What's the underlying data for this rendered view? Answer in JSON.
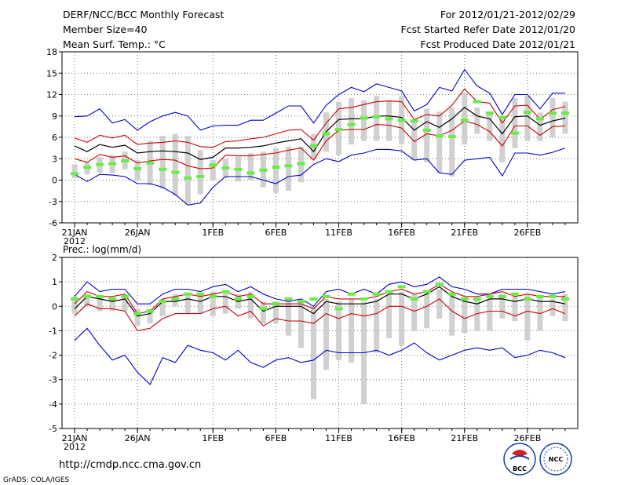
{
  "header": {
    "title_left": "DERF/NCC/BCC Monthly Forecast",
    "member_size": "Member Size=40",
    "variable": "Mean Surf. Temp.: °C",
    "period": "For 2012/01/21-2012/02/29",
    "refer_date": "Fcst Started Refer Date 2012/01/20",
    "produced_date": "Fcst Produced Date 2012/01/21"
  },
  "footer": {
    "url": "http://cmdp.ncc.cma.gov.cn",
    "credit": "GrADS: COLA/IGES",
    "logo_bcc": "BCC",
    "logo_ncc": "NCC"
  },
  "colors": {
    "ensemble_mean": "#000000",
    "spread": "#cc0000",
    "extremes": "#0000cc",
    "observed_marker": "#66ee44",
    "box": "#d0d0d0"
  },
  "chart_data": [
    {
      "type": "line",
      "title": "Mean Surf. Temp.: °C",
      "ylim": [
        -6,
        18
      ],
      "yticks": [
        -6,
        -3,
        0,
        3,
        6,
        9,
        12,
        15,
        18
      ],
      "x_tick_labels": [
        {
          "day": 1,
          "label": "21JAN"
        },
        {
          "day": 6,
          "label": "26JAN"
        },
        {
          "day": 12,
          "label": "1FEB"
        },
        {
          "day": 17,
          "label": "6FEB"
        },
        {
          "day": 22,
          "label": "11FEB"
        },
        {
          "day": 27,
          "label": "16FEB"
        },
        {
          "day": 32,
          "label": "21FEB"
        },
        {
          "day": 37,
          "label": "26FEB"
        }
      ],
      "year_label": "2012",
      "grid": true,
      "days": 40,
      "series": [
        {
          "name": "max",
          "values": [
            8.9,
            9.0,
            10.0,
            8.0,
            8.5,
            7.0,
            8.2,
            9.0,
            9.5,
            9.0,
            7.0,
            7.6,
            7.7,
            7.7,
            8.4,
            8.4,
            9.4,
            10.4,
            10.4,
            8.0,
            10.5,
            12.0,
            13.0,
            12.4,
            13.5,
            13.0,
            12.5,
            9.7,
            10.6,
            13.0,
            12.5,
            15.5,
            13.2,
            12.2,
            9.2,
            12.0,
            12.0,
            10.0,
            12.2,
            12.2
          ]
        },
        {
          "name": "upper",
          "values": [
            5.9,
            5.3,
            6.3,
            5.9,
            6.3,
            5.0,
            5.2,
            5.3,
            5.5,
            5.3,
            4.7,
            4.6,
            5.4,
            5.5,
            5.8,
            6.0,
            6.5,
            7.0,
            7.1,
            5.6,
            8.0,
            10.0,
            10.2,
            10.6,
            11.0,
            11.1,
            11.0,
            8.5,
            9.2,
            9.0,
            10.5,
            12.8,
            11.0,
            10.8,
            8.0,
            10.4,
            10.5,
            8.5,
            9.9,
            10.3
          ]
        },
        {
          "name": "mean",
          "values": [
            4.8,
            4.0,
            5.0,
            4.6,
            4.9,
            3.8,
            4.0,
            4.1,
            4.0,
            3.8,
            2.9,
            3.2,
            4.5,
            4.5,
            4.6,
            4.8,
            5.2,
            5.5,
            5.8,
            4.0,
            6.8,
            8.5,
            8.6,
            8.6,
            9.0,
            9.0,
            8.8,
            7.0,
            8.2,
            7.4,
            8.6,
            10.2,
            9.0,
            8.6,
            6.5,
            8.9,
            9.0,
            7.7,
            8.3,
            8.7
          ]
        },
        {
          "name": "lower",
          "values": [
            3.0,
            2.5,
            3.6,
            3.2,
            3.4,
            2.4,
            2.7,
            2.9,
            2.8,
            2.0,
            1.6,
            1.7,
            3.5,
            3.4,
            3.4,
            3.6,
            3.8,
            4.2,
            4.5,
            2.8,
            5.5,
            7.0,
            7.1,
            7.1,
            7.8,
            7.7,
            7.3,
            5.4,
            6.5,
            6.2,
            7.0,
            8.3,
            7.8,
            6.8,
            4.8,
            7.6,
            7.6,
            6.3,
            7.5,
            7.6
          ]
        },
        {
          "name": "min",
          "values": [
            0.8,
            -0.2,
            0.8,
            0.7,
            0.5,
            -0.5,
            -0.5,
            -1.0,
            -2.0,
            -3.5,
            -3.2,
            -1.0,
            0.5,
            0.5,
            0.5,
            0.0,
            -0.5,
            0.5,
            0.7,
            2.2,
            3.0,
            2.6,
            3.5,
            3.8,
            4.3,
            4.3,
            4.1,
            2.8,
            3.0,
            1.0,
            0.8,
            2.8,
            3.0,
            3.2,
            0.6,
            3.8,
            3.8,
            3.5,
            3.9,
            4.5
          ]
        },
        {
          "name": "observed",
          "values": [
            0.9,
            1.8,
            2.2,
            2.3,
            2.7,
            1.6,
            2.4,
            1.5,
            1.1,
            0.3,
            0.5,
            2.1,
            1.7,
            1.5,
            1.0,
            1.4,
            1.8,
            2.0,
            2.3,
            4.8,
            6.5,
            7.1,
            7.8,
            8.7,
            8.9,
            8.6,
            8.4,
            8.3,
            7.0,
            6.2,
            6.1,
            8.4,
            11.0,
            9.4,
            8.8,
            6.6,
            9.5,
            8.6,
            9.4,
            9.4
          ]
        },
        {
          "name": "box_top",
          "values": [
            2.2,
            2.5,
            3.2,
            3.5,
            4.0,
            2.8,
            5.5,
            6.2,
            6.5,
            6.2,
            4.2,
            2.8,
            3.0,
            3.3,
            3.8,
            4.0,
            4.5,
            4.7,
            4.7,
            6.5,
            9.5,
            11.0,
            11.5,
            11.2,
            11.8,
            11.2,
            11.8,
            8.5,
            10.0,
            9.6,
            10.2,
            12.3,
            10.2,
            9.6,
            8.8,
            11.5,
            11.8,
            9.5,
            11.5,
            11.0
          ]
        },
        {
          "name": "box_bottom",
          "values": [
            0.3,
            0.8,
            1.0,
            1.0,
            1.5,
            0.0,
            -0.7,
            -1.2,
            -2.2,
            -3.3,
            -2.0,
            0.0,
            0.3,
            -0.2,
            0.0,
            -1.0,
            -1.8,
            -1.5,
            -0.3,
            3.0,
            4.0,
            3.5,
            5.0,
            5.5,
            5.5,
            5.5,
            5.0,
            2.8,
            2.5,
            1.0,
            0.5,
            5.0,
            6.5,
            5.5,
            2.5,
            4.5,
            5.5,
            5.5,
            6.0,
            6.5
          ]
        }
      ]
    },
    {
      "type": "line",
      "title": "Prec.: log(mm/d)",
      "ylim": [
        -5,
        2
      ],
      "yticks": [
        -5,
        -4,
        -3,
        -2,
        -1,
        0,
        1,
        2
      ],
      "x_tick_labels": [
        {
          "day": 1,
          "label": "21JAN"
        },
        {
          "day": 6,
          "label": "26JAN"
        },
        {
          "day": 12,
          "label": "1FEB"
        },
        {
          "day": 17,
          "label": "6FEB"
        },
        {
          "day": 22,
          "label": "11FEB"
        },
        {
          "day": 27,
          "label": "16FEB"
        },
        {
          "day": 32,
          "label": "21FEB"
        },
        {
          "day": 37,
          "label": "26FEB"
        }
      ],
      "year_label": "2012",
      "grid": true,
      "days": 40,
      "series": [
        {
          "name": "max",
          "values": [
            0.4,
            1.0,
            0.6,
            0.7,
            0.7,
            0.1,
            0.1,
            0.5,
            0.7,
            0.7,
            0.6,
            0.8,
            0.9,
            0.6,
            0.8,
            0.5,
            0.3,
            0.2,
            0.3,
            0.0,
            0.6,
            0.7,
            0.5,
            0.7,
            0.5,
            0.9,
            1.0,
            0.8,
            0.9,
            1.2,
            0.8,
            0.7,
            0.5,
            0.5,
            0.7,
            0.7,
            0.7,
            0.6,
            0.5,
            0.6
          ]
        },
        {
          "name": "upper",
          "values": [
            0.1,
            0.6,
            0.4,
            0.4,
            0.5,
            -0.3,
            -0.2,
            0.3,
            0.4,
            0.5,
            0.4,
            0.5,
            0.6,
            0.4,
            0.5,
            0.1,
            0.1,
            0.1,
            0.1,
            -0.1,
            0.4,
            0.3,
            0.3,
            0.3,
            0.4,
            0.6,
            0.7,
            0.5,
            0.6,
            0.9,
            0.6,
            0.4,
            0.4,
            0.5,
            0.6,
            0.4,
            0.5,
            0.4,
            0.4,
            0.4
          ]
        },
        {
          "name": "mean",
          "values": [
            -0.1,
            0.4,
            0.3,
            0.2,
            0.3,
            -0.4,
            -0.3,
            0.2,
            0.2,
            0.3,
            0.2,
            0.4,
            0.4,
            0.2,
            0.3,
            -0.2,
            0.0,
            0.0,
            0.0,
            -0.3,
            0.2,
            0.1,
            0.1,
            0.1,
            0.2,
            0.5,
            0.5,
            0.3,
            0.5,
            0.8,
            0.4,
            0.2,
            0.1,
            0.3,
            0.3,
            0.2,
            0.3,
            0.2,
            0.2,
            0.1
          ]
        },
        {
          "name": "lower",
          "values": [
            -0.4,
            0.1,
            -0.1,
            -0.1,
            -0.2,
            -1.0,
            -0.9,
            -0.5,
            -0.3,
            -0.3,
            -0.3,
            -0.1,
            0.0,
            -0.4,
            -0.2,
            -0.8,
            -0.5,
            -0.6,
            -0.6,
            -0.7,
            -0.3,
            -0.5,
            -0.3,
            -0.4,
            -0.3,
            0.0,
            0.0,
            -0.2,
            0.0,
            0.3,
            -0.2,
            -0.5,
            -0.3,
            -0.2,
            -0.2,
            -0.4,
            -0.2,
            -0.3,
            -0.1,
            -0.3
          ]
        },
        {
          "name": "min",
          "values": [
            -1.4,
            -0.9,
            -1.6,
            -2.2,
            -2.0,
            -2.7,
            -3.2,
            -2.1,
            -2.3,
            -1.6,
            -1.8,
            -1.9,
            -2.2,
            -1.8,
            -2.3,
            -2.5,
            -2.2,
            -2.1,
            -2.3,
            -2.2,
            -1.8,
            -1.9,
            -1.9,
            -1.9,
            -1.8,
            -2.0,
            -1.8,
            -1.5,
            -1.9,
            -2.2,
            -2.0,
            -1.8,
            -1.7,
            -1.8,
            -1.7,
            -2.1,
            -2.0,
            -1.8,
            -1.9,
            -2.1
          ]
        },
        {
          "name": "observed",
          "values": [
            0.3,
            0.4,
            0.4,
            0.3,
            0.4,
            -0.3,
            -0.2,
            0.2,
            0.3,
            0.5,
            0.5,
            0.4,
            0.6,
            0.3,
            0.4,
            -0.1,
            0.1,
            0.3,
            0.2,
            0.3,
            0.4,
            -0.1,
            0.5,
            0.3,
            0.5,
            0.6,
            0.8,
            0.3,
            0.6,
            0.9,
            0.5,
            0.3,
            0.3,
            0.4,
            0.4,
            0.5,
            0.3,
            0.4,
            0.4,
            0.3
          ]
        },
        {
          "name": "box_top",
          "values": [
            0.4,
            0.5,
            0.4,
            0.3,
            0.4,
            -0.1,
            -0.1,
            0.3,
            0.5,
            0.5,
            0.5,
            0.6,
            0.6,
            0.5,
            0.6,
            0.2,
            0.2,
            0.2,
            0.2,
            0.0,
            0.3,
            0.2,
            0.3,
            0.2,
            0.3,
            0.5,
            0.6,
            0.5,
            0.6,
            0.7,
            0.5,
            0.3,
            0.3,
            0.3,
            0.5,
            0.4,
            0.5,
            0.4,
            0.3,
            0.5
          ]
        },
        {
          "name": "box_bottom",
          "values": [
            -0.3,
            0.0,
            -0.2,
            -0.2,
            -0.2,
            -0.8,
            -0.7,
            -0.4,
            0.0,
            -0.3,
            -0.3,
            -0.4,
            -0.3,
            -0.1,
            -0.5,
            -0.7,
            -0.7,
            -1.2,
            -1.7,
            -3.8,
            -2.6,
            -2.2,
            -2.3,
            -4.0,
            -1.9,
            -1.3,
            -1.6,
            -1.0,
            -0.9,
            -0.5,
            -1.2,
            -1.1,
            -1.0,
            -1.0,
            -0.5,
            -0.6,
            -1.4,
            -1.0,
            -0.4,
            -0.6
          ]
        }
      ]
    }
  ]
}
